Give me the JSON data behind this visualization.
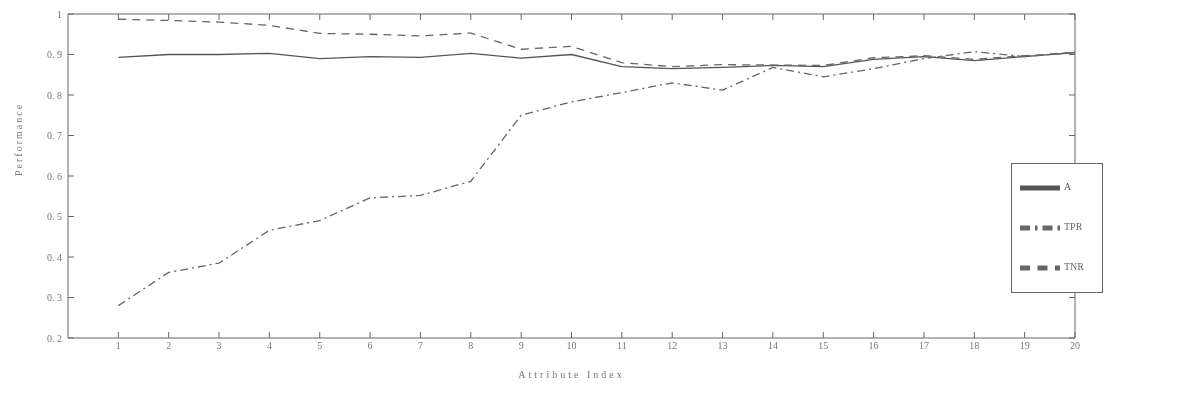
{
  "chart_data": {
    "type": "line",
    "xlabel": "Attribute Index",
    "ylabel": "Performance",
    "x": [
      1,
      2,
      3,
      4,
      5,
      6,
      7,
      8,
      9,
      10,
      11,
      12,
      13,
      14,
      15,
      16,
      17,
      18,
      19,
      20
    ],
    "xlim": [
      0,
      20
    ],
    "xticks": [
      1,
      2,
      3,
      4,
      5,
      6,
      7,
      8,
      9,
      10,
      11,
      12,
      13,
      14,
      15,
      16,
      17,
      18,
      19,
      20
    ],
    "ylim": [
      0.2,
      1
    ],
    "yticks": [
      0.2,
      0.3,
      0.4,
      0.5,
      0.6,
      0.7,
      0.8,
      0.9,
      1
    ],
    "grid": false,
    "legend": "bottom right",
    "marker": "none",
    "series": [
      {
        "name": "A",
        "color": "#555555",
        "line_style": "solid",
        "values": [
          0.893,
          0.9,
          0.9,
          0.903,
          0.89,
          0.895,
          0.893,
          0.903,
          0.891,
          0.9,
          0.87,
          0.865,
          0.868,
          0.873,
          0.87,
          0.888,
          0.895,
          0.885,
          0.895,
          0.905
        ]
      },
      {
        "name": "TPR",
        "color": "#666666",
        "line_style": "dashdot",
        "values": [
          0.28,
          0.362,
          0.385,
          0.466,
          0.49,
          0.546,
          0.552,
          0.587,
          0.75,
          0.783,
          0.806,
          0.83,
          0.812,
          0.868,
          0.845,
          0.865,
          0.89,
          0.907,
          0.895,
          0.905
        ]
      },
      {
        "name": "TNR",
        "color": "#666666",
        "line_style": "dashed",
        "values": [
          0.987,
          0.984,
          0.98,
          0.972,
          0.952,
          0.95,
          0.946,
          0.953,
          0.913,
          0.92,
          0.88,
          0.87,
          0.875,
          0.874,
          0.873,
          0.892,
          0.897,
          0.888,
          0.897,
          0.905
        ]
      }
    ]
  }
}
